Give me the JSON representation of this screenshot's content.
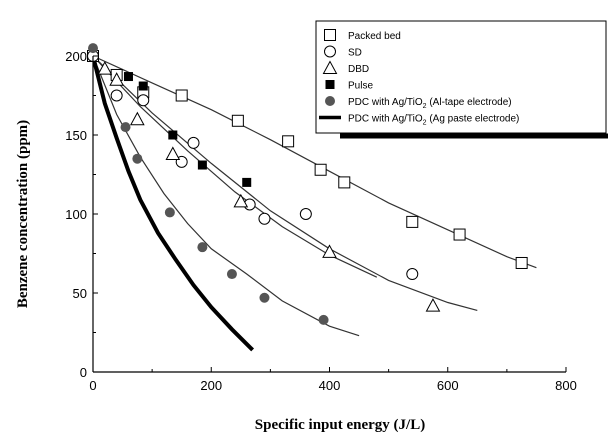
{
  "chart_data": {
    "type": "scatter",
    "xlabel": "Specific input energy (J/L)",
    "ylabel": "Benzene concentration (ppm)",
    "xlim": [
      0,
      800
    ],
    "ylim": [
      0,
      200
    ],
    "x_ticks": [
      "0",
      "200",
      "400",
      "600",
      "800"
    ],
    "y_ticks": [
      "0",
      "50",
      "100",
      "150",
      "200"
    ],
    "legend_position": "top-right",
    "series": [
      {
        "name": "Packed bed",
        "marker": "open-square",
        "points": [
          [
            0,
            200
          ],
          [
            40,
            188
          ],
          [
            85,
            177
          ],
          [
            150,
            175
          ],
          [
            245,
            159
          ],
          [
            330,
            146
          ],
          [
            385,
            128
          ],
          [
            425,
            120
          ],
          [
            540,
            95
          ],
          [
            620,
            87
          ],
          [
            725,
            69
          ]
        ],
        "fit": [
          [
            0,
            200
          ],
          [
            100,
            183
          ],
          [
            200,
            166
          ],
          [
            300,
            147
          ],
          [
            400,
            127
          ],
          [
            500,
            107
          ],
          [
            600,
            90
          ],
          [
            700,
            73
          ],
          [
            750,
            66
          ]
        ]
      },
      {
        "name": "SD",
        "marker": "open-circle",
        "points": [
          [
            0,
            200
          ],
          [
            40,
            175
          ],
          [
            85,
            172
          ],
          [
            150,
            133
          ],
          [
            170,
            145
          ],
          [
            265,
            106
          ],
          [
            290,
            97
          ],
          [
            360,
            100
          ],
          [
            540,
            62
          ]
        ],
        "fit": [
          [
            0,
            200
          ],
          [
            100,
            164
          ],
          [
            200,
            132
          ],
          [
            300,
            102
          ],
          [
            400,
            78
          ],
          [
            500,
            58
          ],
          [
            600,
            44
          ],
          [
            650,
            39
          ]
        ]
      },
      {
        "name": "DBD",
        "marker": "open-triangle",
        "points": [
          [
            20,
            192
          ],
          [
            40,
            185
          ],
          [
            75,
            160
          ],
          [
            135,
            138
          ],
          [
            250,
            108
          ],
          [
            400,
            76
          ],
          [
            575,
            42
          ]
        ],
        "fit": [
          [
            0,
            200
          ],
          [
            80,
            168
          ],
          [
            160,
            140
          ],
          [
            240,
            114
          ],
          [
            320,
            92
          ],
          [
            400,
            74
          ],
          [
            480,
            60
          ]
        ]
      },
      {
        "name": "Pulse",
        "marker": "filled-square",
        "points": [
          [
            60,
            187
          ],
          [
            85,
            181
          ],
          [
            135,
            150
          ],
          [
            185,
            131
          ],
          [
            260,
            120
          ]
        ]
      },
      {
        "name": "PDC with Ag/TiO2 (Al-tape electrode)",
        "marker": "filled-circle",
        "points": [
          [
            0,
            205
          ],
          [
            55,
            155
          ],
          [
            75,
            135
          ],
          [
            130,
            101
          ],
          [
            185,
            79
          ],
          [
            235,
            62
          ],
          [
            290,
            47
          ],
          [
            390,
            33
          ]
        ],
        "fit": [
          [
            0,
            200
          ],
          [
            40,
            163
          ],
          [
            80,
            136
          ],
          [
            120,
            113
          ],
          [
            160,
            94
          ],
          [
            200,
            78
          ],
          [
            260,
            62
          ],
          [
            320,
            45
          ],
          [
            400,
            29
          ],
          [
            450,
            23
          ]
        ]
      },
      {
        "name": "PDC with Ag/TiO2 (Ag paste electrode)",
        "marker": "thick-line",
        "fit": [
          [
            0,
            200
          ],
          [
            20,
            170
          ],
          [
            40,
            148
          ],
          [
            60,
            127
          ],
          [
            80,
            109
          ],
          [
            110,
            88
          ],
          [
            140,
            71
          ],
          [
            170,
            55
          ],
          [
            200,
            41
          ],
          [
            235,
            27
          ],
          [
            270,
            14
          ]
        ]
      }
    ]
  }
}
